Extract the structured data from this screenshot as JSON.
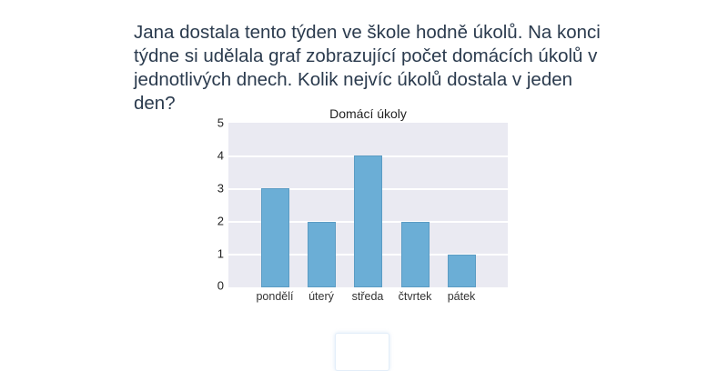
{
  "question": {
    "text": "Jana dostala tento týden ve škole hodně úkolů. Na konci týdne si udělala graf zobrazující počet domácích úkolů v jednotlivých dnech. Kolik nejvíc úkolů dostala v jeden den?"
  },
  "answer": {
    "value": ""
  },
  "chart_data": {
    "type": "bar",
    "title": "Domácí úkoly",
    "xlabel": "",
    "ylabel": "",
    "categories": [
      "pondělí",
      "úterý",
      "středa",
      "čtvrtek",
      "pátek"
    ],
    "values": [
      3,
      2,
      4,
      2,
      1
    ],
    "ylim": [
      0,
      5
    ],
    "yticks": [
      "0",
      "1",
      "2",
      "3",
      "4",
      "5"
    ],
    "grid": true,
    "legend": null,
    "bar_color": "#6baed6",
    "background_color": "#eaeaf2"
  }
}
